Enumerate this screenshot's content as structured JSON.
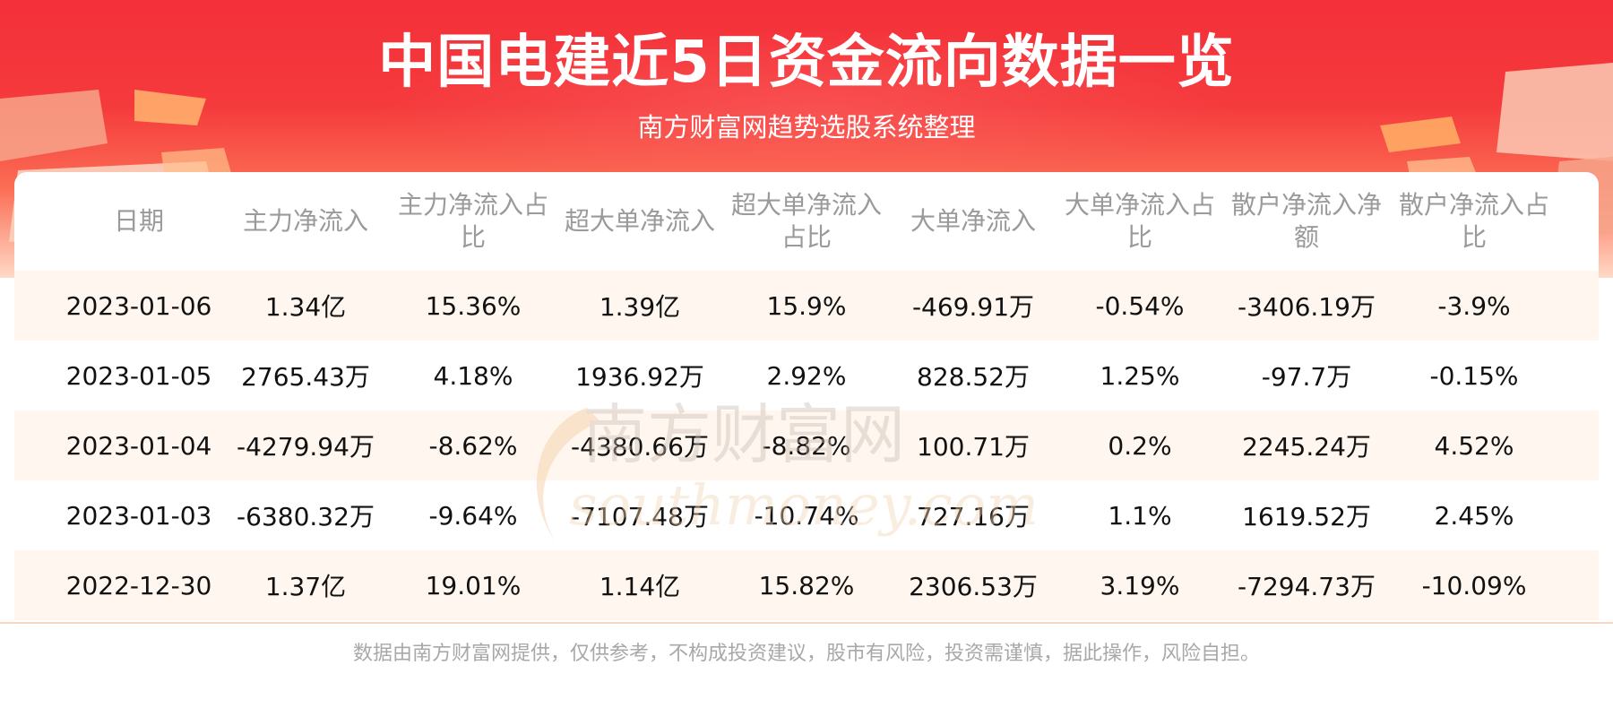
{
  "header": {
    "title": "中国电建近5日资金流向数据一览",
    "subtitle": "南方财富网趋势选股系统整理"
  },
  "chart_data": {
    "type": "table",
    "columns": [
      "日期",
      "主力净流入",
      "主力净流入占比",
      "超大单净流入",
      "超大单净流入占比",
      "大单净流入",
      "大单净流入占比",
      "散户净流入净额",
      "散户净流入占比"
    ],
    "rows": [
      [
        "2023-01-06",
        "1.34亿",
        "15.36%",
        "1.39亿",
        "15.9%",
        "-469.91万",
        "-0.54%",
        "-3406.19万",
        "-3.9%"
      ],
      [
        "2023-01-05",
        "2765.43万",
        "4.18%",
        "1936.92万",
        "2.92%",
        "828.52万",
        "1.25%",
        "-97.7万",
        "-0.15%"
      ],
      [
        "2023-01-04",
        "-4279.94万",
        "-8.62%",
        "-4380.66万",
        "-8.82%",
        "100.71万",
        "0.2%",
        "2245.24万",
        "4.52%"
      ],
      [
        "2023-01-03",
        "-6380.32万",
        "-9.64%",
        "-7107.48万",
        "-10.74%",
        "727.16万",
        "1.1%",
        "1619.52万",
        "2.45%"
      ],
      [
        "2022-12-30",
        "1.37亿",
        "19.01%",
        "1.14亿",
        "15.82%",
        "2306.53万",
        "3.19%",
        "-7294.73万",
        "-10.09%"
      ]
    ]
  },
  "watermark": {
    "cn": "南方财富网",
    "en": "southmoney.com"
  },
  "footer": {
    "disclaimer": "数据由南方财富网提供，仅供参考，不构成投资建议，股市有风险，投资需谨慎，据此操作，风险自担。"
  },
  "colors": {
    "banner_red": "#f4303a",
    "row_shade": "#fff7ef",
    "header_text": "#9a9a9a",
    "cell_text": "#111111",
    "watermark": "#c9a27d"
  }
}
